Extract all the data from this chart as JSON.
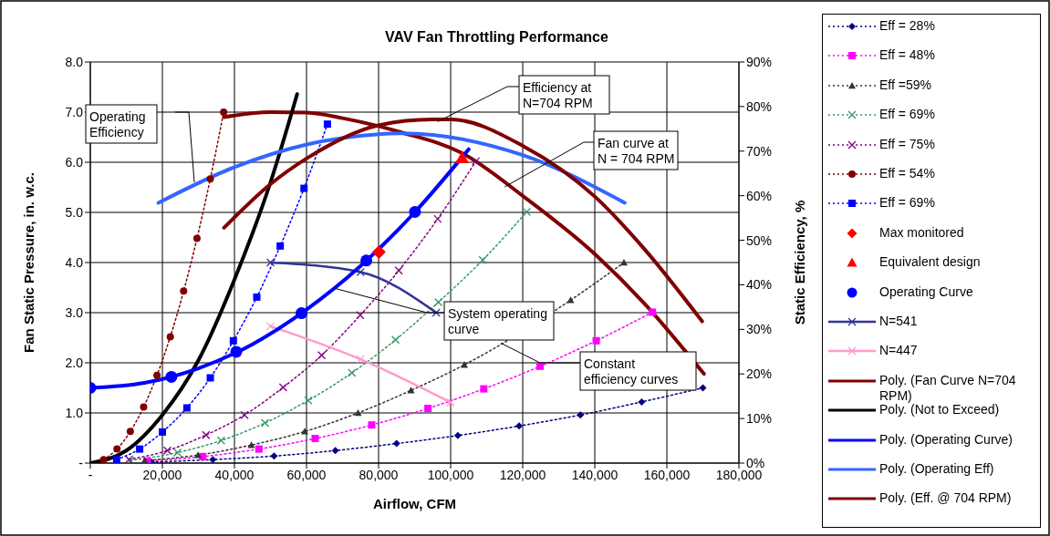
{
  "chart_data": {
    "type": "line",
    "title": "VAV Fan Throttling Performance",
    "xlabel": "Airflow, CFM",
    "ylabel": "Fan Static Pressure, in. w.c.",
    "y2label": "Static Efficiency, %",
    "xlim": [
      0,
      180000
    ],
    "xticks": [
      {
        "value": 0,
        "label": "-"
      },
      {
        "value": 20000,
        "label": "20,000"
      },
      {
        "value": 40000,
        "label": "40,000"
      },
      {
        "value": 60000,
        "label": "60,000"
      },
      {
        "value": 80000,
        "label": "80,000"
      },
      {
        "value": 100000,
        "label": "100,000"
      },
      {
        "value": 120000,
        "label": "120,000"
      },
      {
        "value": 140000,
        "label": "140,000"
      },
      {
        "value": 160000,
        "label": "160,000"
      },
      {
        "value": 180000,
        "label": "180,000"
      }
    ],
    "ylim": [
      0,
      8
    ],
    "yticks": [
      {
        "value": 0,
        "label": "-"
      },
      {
        "value": 1,
        "label": "1.0"
      },
      {
        "value": 2,
        "label": "2.0"
      },
      {
        "value": 3,
        "label": "3.0"
      },
      {
        "value": 4,
        "label": "4.0"
      },
      {
        "value": 5,
        "label": "5.0"
      },
      {
        "value": 6,
        "label": "6.0"
      },
      {
        "value": 7,
        "label": "7.0"
      },
      {
        "value": 8,
        "label": "8.0"
      }
    ],
    "y2lim": [
      0,
      90
    ],
    "y2ticks": [
      {
        "value": 0,
        "label": "0%"
      },
      {
        "value": 10,
        "label": "10%"
      },
      {
        "value": 20,
        "label": "20%"
      },
      {
        "value": 30,
        "label": "30%"
      },
      {
        "value": 40,
        "label": "40%"
      },
      {
        "value": 50,
        "label": "50%"
      },
      {
        "value": 60,
        "label": "60%"
      },
      {
        "value": 70,
        "label": "70%"
      },
      {
        "value": 80,
        "label": "80%"
      },
      {
        "value": 90,
        "label": "90%"
      }
    ],
    "grid": true,
    "legend": "right",
    "series": [
      {
        "name": "Eff = 28%",
        "color": "#000080",
        "marker": "diamond",
        "line_style": "dotted",
        "x": [
          17000,
          34000,
          51000,
          68000,
          85000,
          102000,
          119000,
          136000,
          153000,
          170000
        ],
        "values": [
          0.02,
          0.07,
          0.14,
          0.25,
          0.39,
          0.55,
          0.74,
          0.96,
          1.22,
          1.5
        ]
      },
      {
        "name": "Eff = 48%",
        "color": "#ff00ff",
        "marker": "square",
        "line_style": "dotted",
        "x": [
          15800,
          31200,
          46800,
          62400,
          78100,
          93700,
          109200,
          124800,
          140400,
          156000
        ],
        "values": [
          0.04,
          0.13,
          0.28,
          0.49,
          0.76,
          1.09,
          1.48,
          1.93,
          2.44,
          3.01
        ]
      },
      {
        "name": "Eff =59%",
        "color": "#333333",
        "marker": "triangle",
        "line_style": "dotted",
        "x": [
          15100,
          29900,
          44700,
          59500,
          74300,
          89000,
          103800,
          133300,
          148100
        ],
        "values": [
          0.05,
          0.16,
          0.36,
          0.63,
          1.0,
          1.45,
          1.96,
          3.25,
          4.0
        ]
      },
      {
        "name": "Eff = 69%",
        "color": "#339966",
        "marker": "cross",
        "line_style": "dotted",
        "x": [
          11100,
          24200,
          36300,
          48500,
          60500,
          72600,
          84700,
          96600,
          108900,
          121100
        ],
        "values": [
          0.05,
          0.21,
          0.45,
          0.8,
          1.25,
          1.8,
          2.46,
          3.21,
          4.05,
          5.01
        ]
      },
      {
        "name": "Eff = 75%",
        "color": "#800080",
        "marker": "cross",
        "line_style": "dotted",
        "x": [
          10700,
          21400,
          32100,
          42800,
          53500,
          64200,
          74900,
          85600,
          96400,
          107000
        ],
        "values": [
          0.07,
          0.25,
          0.56,
          0.96,
          1.51,
          2.15,
          2.95,
          3.84,
          4.87,
          6.02
        ]
      },
      {
        "name": "Eff = 54%",
        "color": "#800000",
        "marker": "circle",
        "line_style": "dotted",
        "x": [
          3700,
          7400,
          11100,
          14800,
          18500,
          22200,
          25900,
          29600,
          33300,
          37000
        ],
        "values": [
          0.07,
          0.28,
          0.63,
          1.12,
          1.75,
          2.52,
          3.43,
          4.48,
          5.67,
          7.0
        ]
      },
      {
        "name": "Eff = 69%",
        "color": "#0000ff",
        "marker": "square",
        "line_style": "dotted",
        "x": [
          7300,
          13700,
          20000,
          26800,
          33300,
          39700,
          46200,
          52700,
          59300,
          65800
        ],
        "values": [
          0.07,
          0.28,
          0.62,
          1.1,
          1.7,
          2.44,
          3.31,
          4.33,
          5.48,
          6.76
        ]
      },
      {
        "name": "Max monitored",
        "type": "scatter",
        "color": "#ff0000",
        "marker": "diamond",
        "x": [
          80100
        ],
        "values": [
          4.21
        ]
      },
      {
        "name": "Equivalent design",
        "type": "scatter",
        "color": "#ff0000",
        "marker": "triangle",
        "x": [
          103200
        ],
        "values": [
          6.09
        ]
      },
      {
        "name": "Operating Curve",
        "type": "scatter",
        "color": "#0000ff",
        "marker": "circle",
        "x": [
          0,
          22500,
          40500,
          58600,
          76600,
          90100
        ],
        "values": [
          1.5,
          1.72,
          2.22,
          2.99,
          4.04,
          5.01
        ]
      },
      {
        "name": "N=541",
        "color": "#333399",
        "marker": "cross",
        "line_style": "solid",
        "x": [
          50000,
          75000,
          96000
        ],
        "values": [
          4.0,
          3.81,
          3.0
        ]
      },
      {
        "name": "N=447",
        "color": "#ff99cc",
        "marker": "cross",
        "line_style": "solid",
        "x": [
          50000,
          75000,
          100000
        ],
        "values": [
          2.73,
          2.07,
          1.21
        ]
      },
      {
        "name": "Poly. (Fan Curve N=704 RPM)",
        "color": "#800000",
        "marker": "none",
        "line_style": "solid",
        "x": [
          37100,
          50000,
          60000,
          70000,
          80000,
          86100,
          103200,
          120000,
          140300,
          153800,
          170300
        ],
        "values": [
          6.9,
          7.0,
          6.99,
          6.88,
          6.72,
          6.6,
          6.18,
          5.33,
          4.15,
          3.18,
          1.78
        ]
      },
      {
        "name": "Poly. (Not to Exceed)",
        "color": "#000000",
        "marker": "none",
        "line_style": "solid",
        "x": [
          0,
          10000,
          20000,
          30000,
          40000,
          50000,
          57400
        ],
        "values": [
          0,
          0.25,
          0.96,
          2.05,
          3.66,
          5.6,
          7.36
        ]
      },
      {
        "name": "Poly. (Operating Curve)",
        "color": "#0000ff",
        "marker": "none",
        "line_style": "solid",
        "x": [
          0,
          15000,
          30000,
          45000,
          60000,
          75000,
          90000,
          105000
        ],
        "values": [
          1.5,
          1.6,
          1.89,
          2.37,
          3.06,
          3.93,
          5.0,
          6.26
        ]
      },
      {
        "name": "Poly. (Operating Eff)",
        "color": "#3366ff",
        "marker": "none",
        "line_style": "solid",
        "axis": "y2",
        "x": [
          18900,
          40000,
          60100,
          80000,
          86300,
          120000,
          148300
        ],
        "values": [
          58.4,
          66.4,
          71.5,
          73.8,
          74.0,
          69.1,
          58.4
        ]
      },
      {
        "name": "Poly. (Eff. @ 704 RPM)",
        "color": "#800000",
        "marker": "none",
        "line_style": "solid",
        "axis": "y2",
        "x": [
          37100,
          50000,
          60100,
          80000,
          95000,
          100000,
          120000,
          140300,
          153800,
          169800
        ],
        "values": [
          52.8,
          62.6,
          68.4,
          75.8,
          77.1,
          77.1,
          71.2,
          59.6,
          48.0,
          31.8
        ]
      }
    ],
    "annotations": [
      "Operating Efficiency",
      {
        "text": "Efficiency at N=704 RPM",
        "x": 96400,
        "y": 6.81
      },
      {
        "text": "Fan curve at N = 704 RPM",
        "x": 115000,
        "y": 5.51
      },
      {
        "text": "System operating curve",
        "x": 68100,
        "y": 3.48
      },
      {
        "text": "Constant efficiency curves",
        "x": 114000,
        "y": 2.39
      }
    ]
  }
}
